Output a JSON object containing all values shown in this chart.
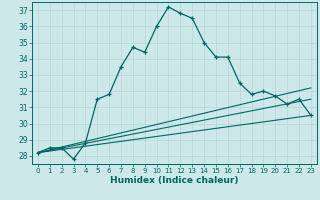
{
  "xlabel": "Humidex (Indice chaleur)",
  "bg_color": "#cce8e8",
  "grid_color": "#aacccc",
  "line_color": "#006666",
  "xlim": [
    -0.5,
    23.5
  ],
  "ylim": [
    27.5,
    37.5
  ],
  "xticks": [
    0,
    1,
    2,
    3,
    4,
    5,
    6,
    7,
    8,
    9,
    10,
    11,
    12,
    13,
    14,
    15,
    16,
    17,
    18,
    19,
    20,
    21,
    22,
    23
  ],
  "yticks": [
    28,
    29,
    30,
    31,
    32,
    33,
    34,
    35,
    36,
    37
  ],
  "main_x": [
    0,
    1,
    2,
    3,
    4,
    5,
    6,
    7,
    8,
    9,
    10,
    11,
    12,
    13,
    14,
    15,
    16,
    17,
    18,
    19,
    20,
    21,
    22,
    23
  ],
  "main_y": [
    28.2,
    28.5,
    28.5,
    27.8,
    28.8,
    31.5,
    31.8,
    33.5,
    34.7,
    34.4,
    36.0,
    37.2,
    36.8,
    36.5,
    35.0,
    34.1,
    34.1,
    32.5,
    31.8,
    32.0,
    31.7,
    31.2,
    31.5,
    30.5
  ],
  "line1_x": [
    0,
    23
  ],
  "line1_y": [
    28.2,
    30.5
  ],
  "line2_x": [
    0,
    23
  ],
  "line2_y": [
    28.2,
    31.5
  ],
  "line3_x": [
    0,
    23
  ],
  "line3_y": [
    28.2,
    32.2
  ]
}
